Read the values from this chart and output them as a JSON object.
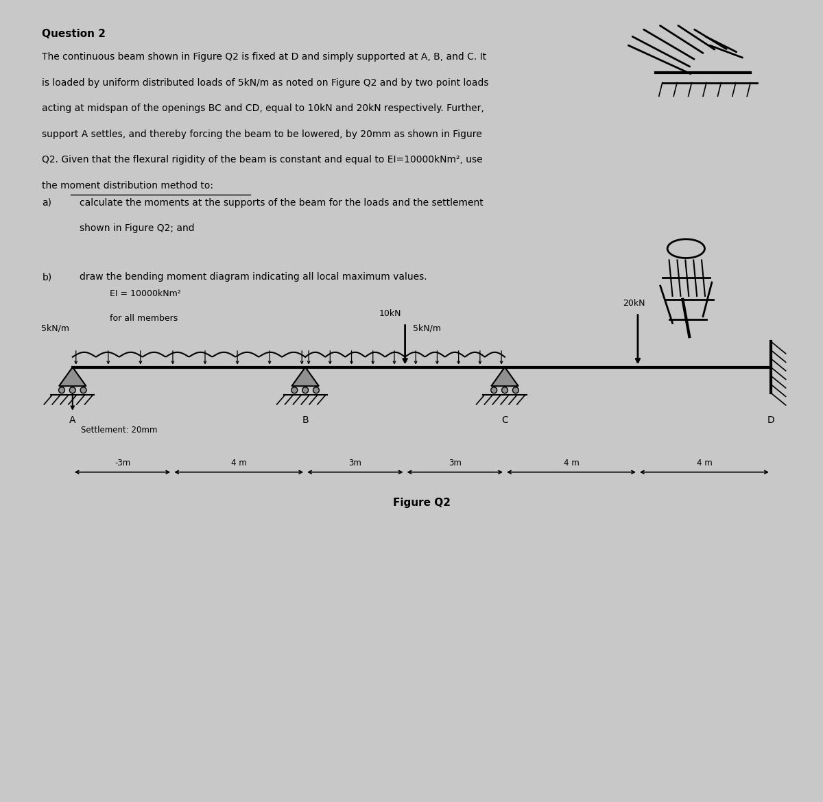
{
  "title": "Question 2",
  "bg_color": "#c8c8c8",
  "lines": [
    "The continuous beam shown in Figure Q2 is fixed at D and simply supported at A, B, and C. It",
    "is loaded by uniform distributed loads of 5kN/m as noted on Figure Q2 and by two point loads",
    "acting at midspan of the openings BC and CD, equal to 10kN and 20kN respectively. Further,",
    "support A settles, and thereby forcing the beam to be lowered, by 20mm as shown in Figure",
    "Q2. Given that the flexural rigidity of the beam is constant and equal to EI=10000kNm², use",
    "the moment distribution method to:"
  ],
  "part_a_label": "a)",
  "part_a_line1": "calculate the moments at the supports of the beam for the loads and the settlement",
  "part_a_line2": "shown in Figure Q2; and",
  "part_b_label": "b)",
  "part_b_line1": "draw the bending moment diagram indicating all local maximum values.",
  "ei_label": "EI = 10000kNm²",
  "for_all": "for all members",
  "udl_left": "5kN/m",
  "point_load_bc": "10kN",
  "udl_bc": "5kN/m",
  "point_load_cd": "20kN",
  "settlement_label": "Settlement: 20mm",
  "figure_label": "Figure Q2",
  "dim_labels": [
    "-3m",
    "4 m",
    "3m",
    "3m",
    "4 m",
    "4 m"
  ],
  "support_labels": [
    "A",
    "B",
    "C",
    "D"
  ],
  "text_color": "#000000",
  "font_size_title": 11,
  "font_size_body": 10,
  "font_size_small": 9
}
